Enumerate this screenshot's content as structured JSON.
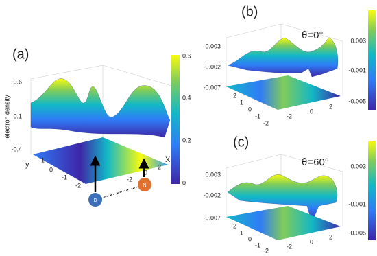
{
  "panels": [
    {
      "label": "(a)",
      "z_axis_label": "electron density",
      "z_ticks": [
        "0.6",
        "0.1",
        "-0.4"
      ],
      "x_axis_label": "X",
      "y_axis_label": "y",
      "x_ticks": [
        "-2",
        "0",
        "2"
      ],
      "y_ticks": [
        "1",
        "0",
        "-1",
        "-2"
      ],
      "colorbar_ticks": [
        "0.6",
        "0.4",
        "0.2",
        "0"
      ],
      "atoms": [
        "B",
        "N"
      ]
    },
    {
      "label": "(b)",
      "angle": "θ=0°",
      "z_ticks": [
        "0.003",
        "-0.002",
        "-0.007"
      ],
      "x_ticks": [
        "-2",
        "0",
        "2"
      ],
      "y_ticks": [
        "2",
        "1",
        "0",
        "-1",
        "-2"
      ],
      "colorbar_ticks": [
        "0.003",
        "-0.001",
        "-0.005"
      ]
    },
    {
      "label": "(c)",
      "angle": "θ=60°",
      "z_ticks": [
        "0.003",
        "-0.002",
        "-0.007"
      ],
      "x_ticks": [
        "-2",
        "0",
        "2"
      ],
      "y_ticks": [
        "2",
        "1",
        "0",
        "-1",
        "-2"
      ],
      "colorbar_ticks": [
        "0.003",
        "-0.001",
        "-0.005"
      ]
    }
  ]
}
